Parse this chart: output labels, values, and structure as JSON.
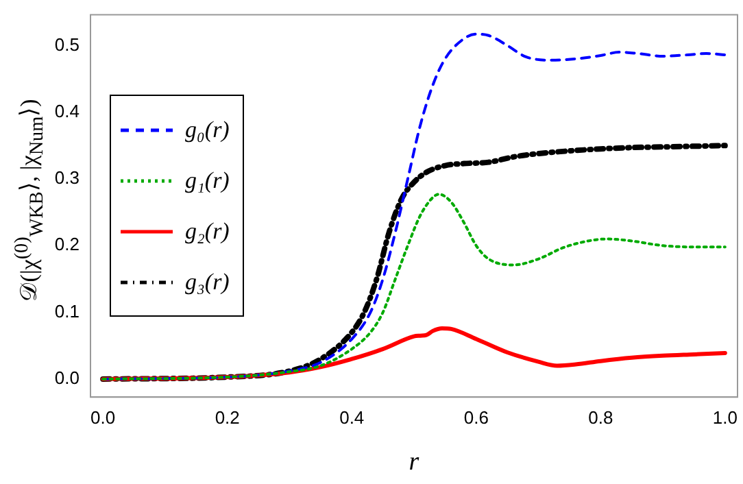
{
  "chart_data": {
    "type": "line",
    "xlabel": "r",
    "ylabel": "𝒟(|χ$^{(0)}$$_{WKB}$⟩, |χ$_{Num}$⟩)",
    "xlim": [
      -0.02,
      1.02
    ],
    "ylim": [
      -0.027,
      0.546
    ],
    "xticks": [
      {
        "value": 0,
        "label": "0.0"
      },
      0.2,
      0.4,
      0.6,
      0.8,
      {
        "value": 1,
        "label": "1.0"
      }
    ],
    "yticks": [
      {
        "value": 0,
        "label": "0.0"
      },
      0.1,
      0.2,
      0.3,
      0.4,
      0.5
    ],
    "grid": false,
    "legend": "left",
    "marker": "none",
    "series": [
      {
        "name": "g₀(r)",
        "color": "#0000ff",
        "line_style": "dashed",
        "x": [
          0,
          0.2,
          0.3,
          0.35,
          0.4,
          0.43,
          0.45,
          0.47,
          0.49,
          0.51,
          0.53,
          0.55,
          0.58,
          0.6,
          0.62,
          0.65,
          0.68,
          0.72,
          0.76,
          0.8,
          0.83,
          0.86,
          0.9,
          0.94,
          0.97,
          1.0
        ],
        "values": [
          0,
          0.003,
          0.012,
          0.025,
          0.06,
          0.1,
          0.15,
          0.22,
          0.3,
          0.38,
          0.44,
          0.48,
          0.51,
          0.517,
          0.515,
          0.5,
          0.483,
          0.478,
          0.48,
          0.485,
          0.49,
          0.488,
          0.484,
          0.486,
          0.488,
          0.486
        ]
      },
      {
        "name": "g₁(r)",
        "color": "#00aa00",
        "line_style": "dotted",
        "x": [
          0,
          0.2,
          0.3,
          0.35,
          0.4,
          0.43,
          0.45,
          0.47,
          0.49,
          0.51,
          0.53,
          0.54,
          0.56,
          0.58,
          0.6,
          0.62,
          0.66,
          0.7,
          0.74,
          0.78,
          0.81,
          0.85,
          0.9,
          0.95,
          1.0
        ],
        "values": [
          0,
          0.003,
          0.011,
          0.02,
          0.045,
          0.07,
          0.1,
          0.15,
          0.2,
          0.245,
          0.272,
          0.277,
          0.265,
          0.235,
          0.2,
          0.18,
          0.171,
          0.18,
          0.197,
          0.207,
          0.21,
          0.207,
          0.2,
          0.198,
          0.198
        ]
      },
      {
        "name": "g₂(r)",
        "color": "#ff0000",
        "line_style": "solid",
        "x": [
          0,
          0.2,
          0.3,
          0.35,
          0.4,
          0.45,
          0.5,
          0.51,
          0.52,
          0.53,
          0.545,
          0.56,
          0.6,
          0.65,
          0.7,
          0.73,
          0.76,
          0.8,
          0.85,
          0.9,
          0.95,
          1.0
        ],
        "values": [
          0,
          0.003,
          0.01,
          0.018,
          0.03,
          0.045,
          0.064,
          0.065,
          0.066,
          0.072,
          0.076,
          0.075,
          0.06,
          0.04,
          0.026,
          0.02,
          0.022,
          0.027,
          0.032,
          0.035,
          0.037,
          0.039
        ]
      },
      {
        "name": "g₃(r)",
        "color": "#000000",
        "line_style": "dashdot",
        "x": [
          0,
          0.2,
          0.3,
          0.35,
          0.4,
          0.42,
          0.44,
          0.46,
          0.48,
          0.5,
          0.52,
          0.55,
          0.58,
          0.62,
          0.66,
          0.7,
          0.75,
          0.8,
          0.85,
          0.9,
          1.0
        ],
        "values": [
          0,
          0.003,
          0.012,
          0.03,
          0.07,
          0.1,
          0.15,
          0.22,
          0.27,
          0.295,
          0.31,
          0.32,
          0.323,
          0.325,
          0.333,
          0.338,
          0.342,
          0.345,
          0.347,
          0.348,
          0.35
        ]
      }
    ]
  }
}
